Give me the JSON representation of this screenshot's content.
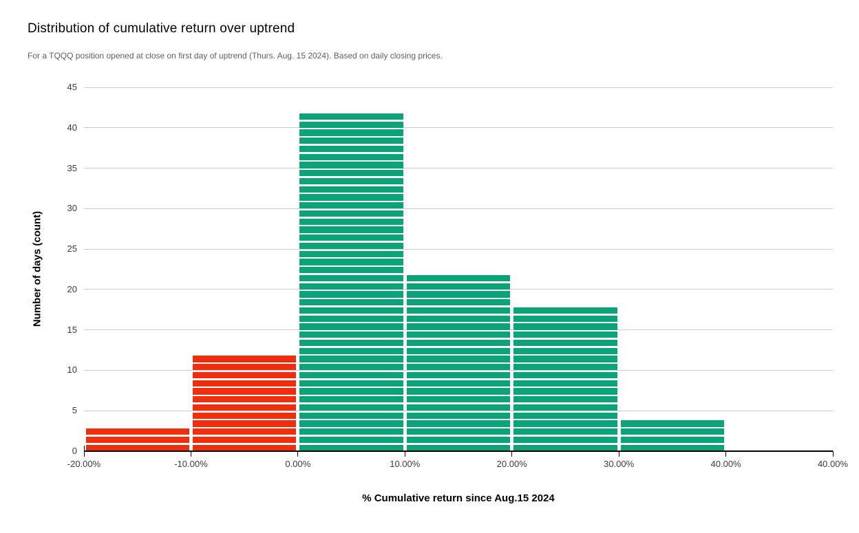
{
  "header": {
    "title": "Distribution of cumulative return over uptrend",
    "subtitle": "For a TQQQ position opened at close on first day of uptrend (Thurs. Aug. 15 2024). Based on daily closing prices."
  },
  "chart_data": {
    "type": "bar",
    "subtype": "histogram-with-unit-dividers",
    "title": "Distribution of cumulative return over uptrend",
    "subtitle": "For a TQQQ position opened at close on first day of uptrend (Thurs. Aug. 15 2024). Based on daily closing prices.",
    "xlabel": "% Cumulative return since Aug.15 2024",
    "ylabel": "Number of days (count)",
    "categories": [
      "-20.00% to -10.00%",
      "-10.00% to 0.00%",
      "0.00% to 10.00%",
      "10.00% to 20.00%",
      "20.00% to 30.00%",
      "30.00% to 40.00%"
    ],
    "values": [
      3,
      12,
      42,
      22,
      18,
      4
    ],
    "bar_colors": [
      "#F22D0D",
      "#F22D0D",
      "#0AA478",
      "#0AA478",
      "#0AA478",
      "#0AA478"
    ],
    "x_tick_labels": [
      "-20.00%",
      "-10.00%",
      "0.00%",
      "10.00%",
      "20.00%",
      "30.00%",
      "40.00%",
      "40.00%"
    ],
    "num_x_intervals": 7,
    "y_ticks": [
      0,
      5,
      10,
      15,
      20,
      25,
      30,
      35,
      40,
      45
    ],
    "ylim": [
      0,
      45
    ],
    "grid": "horizontal",
    "legend": "none",
    "style": {
      "negative_color": "#F22D0D",
      "positive_color": "#0AA478",
      "gridline_color": "#CCCCCC",
      "axis_color": "#000000",
      "unit_divider_color": "#FFFFFF",
      "background": "#FFFFFF"
    }
  }
}
